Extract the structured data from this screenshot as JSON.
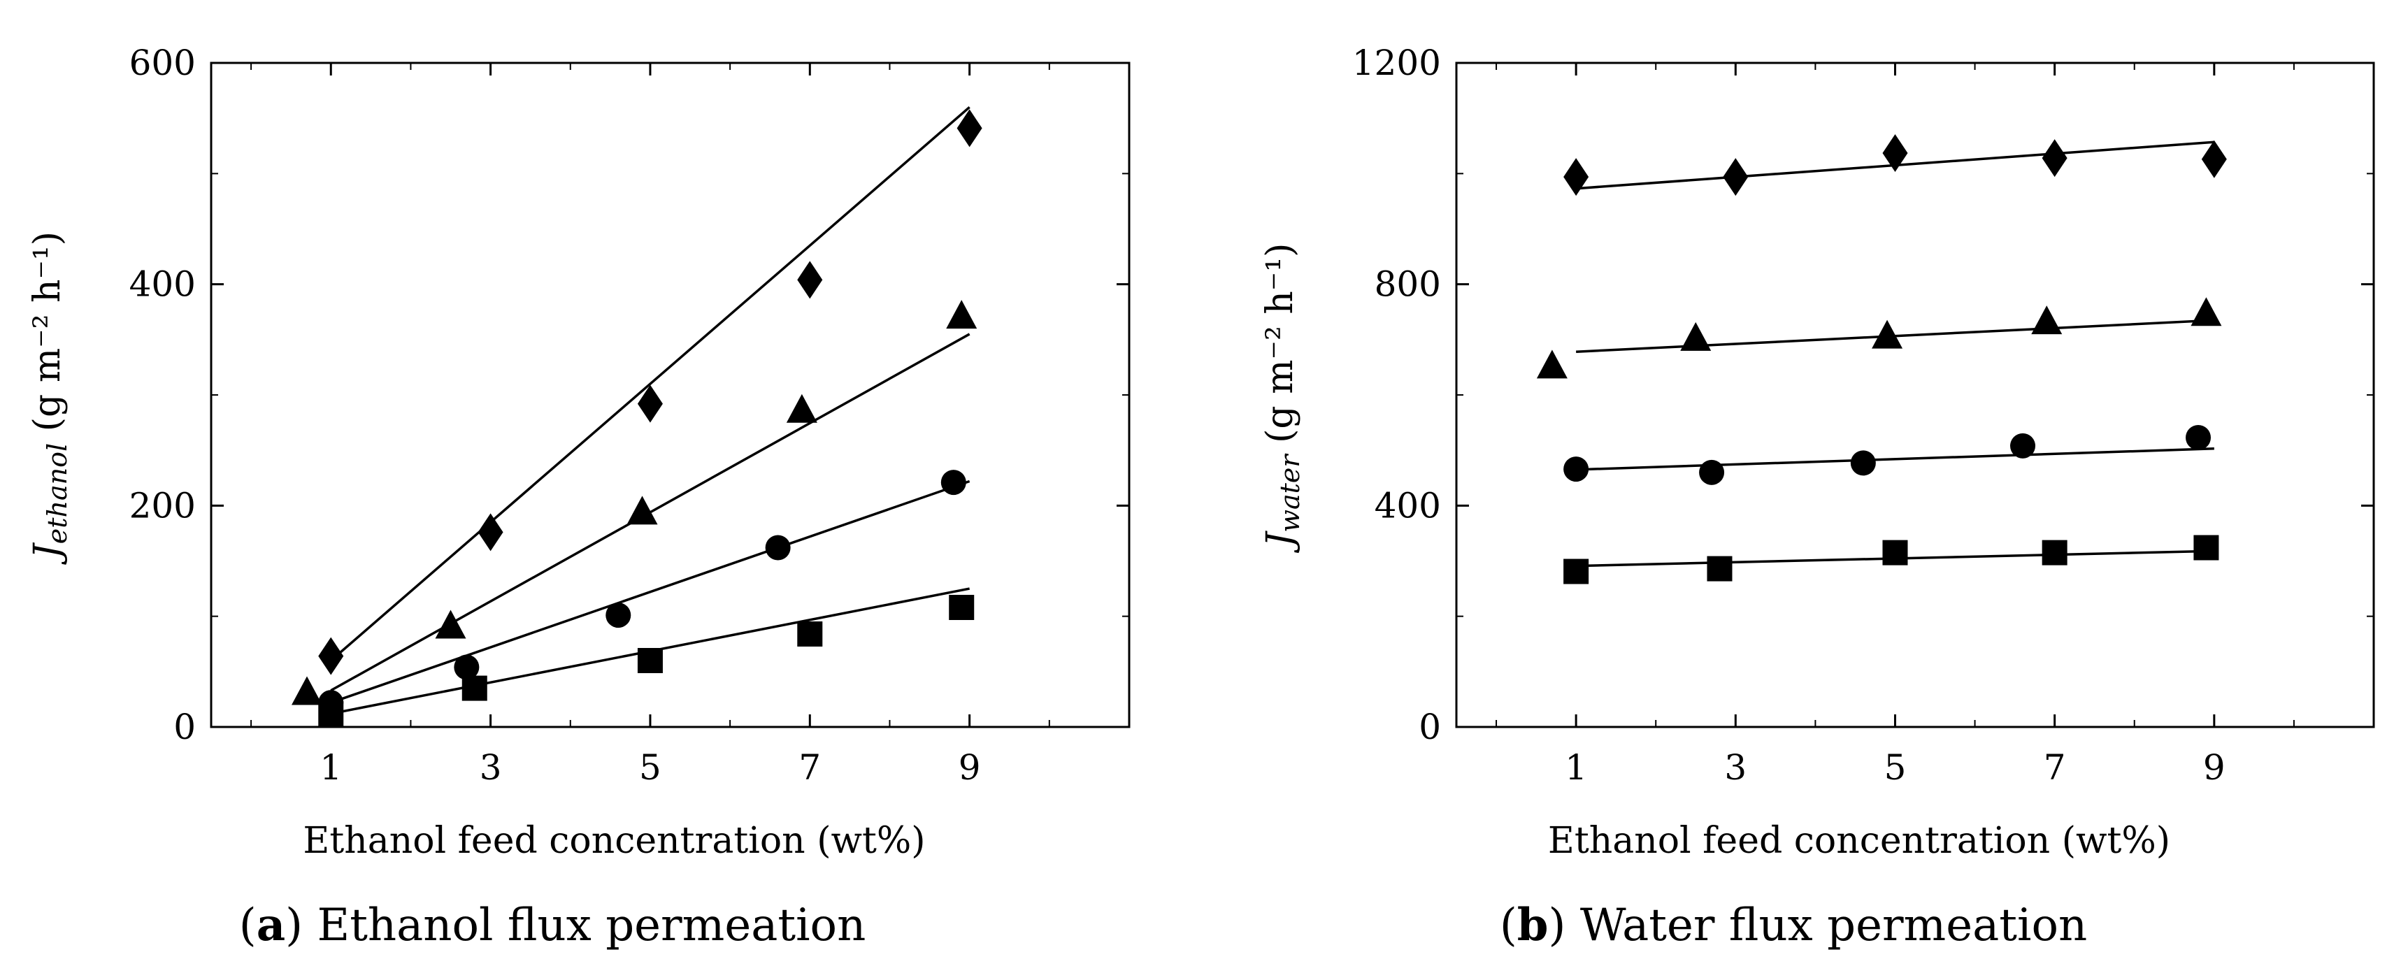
{
  "chart_data": [
    {
      "type": "scatter",
      "panel_letter": "a",
      "caption": "Ethanol flux permeation",
      "xlabel": "Ethanol feed concentration (wt%)",
      "ylabel_symbol": "J",
      "ylabel_subscript": "ethanol",
      "ylabel_units": "g m⁻² h⁻¹",
      "xlim": [
        -0.5,
        11
      ],
      "ylim": [
        0,
        600
      ],
      "xticks": [
        "1",
        "3",
        "5",
        "7",
        "9"
      ],
      "yticks": [
        "0",
        "200",
        "400",
        "600"
      ],
      "series": [
        {
          "name": "diamond",
          "marker": "diamond",
          "points": [
            [
              1,
              64
            ],
            [
              3,
              176
            ],
            [
              5,
              292
            ],
            [
              7,
              404
            ],
            [
              9,
              541
            ]
          ],
          "fit": [
            [
              1,
              60
            ],
            [
              9,
              560
            ]
          ]
        },
        {
          "name": "triangle",
          "marker": "triangle",
          "points": [
            [
              0.7,
              30
            ],
            [
              2.5,
              90
            ],
            [
              4.9,
              193
            ],
            [
              6.9,
              285
            ],
            [
              8.9,
              370
            ]
          ],
          "fit": [
            [
              1,
              33
            ],
            [
              9,
              355
            ]
          ]
        },
        {
          "name": "circle",
          "marker": "circle",
          "points": [
            [
              1,
              22
            ],
            [
              2.7,
              54
            ],
            [
              4.6,
              101
            ],
            [
              6.6,
              162
            ],
            [
              8.8,
              221
            ]
          ],
          "fit": [
            [
              1,
              22
            ],
            [
              9,
              222
            ]
          ]
        },
        {
          "name": "square",
          "marker": "square",
          "points": [
            [
              1,
              12
            ],
            [
              2.8,
              35
            ],
            [
              5,
              60
            ],
            [
              7,
              84
            ],
            [
              8.9,
              108
            ]
          ],
          "fit": [
            [
              1,
              12
            ],
            [
              9,
              125
            ]
          ]
        }
      ]
    },
    {
      "type": "scatter",
      "panel_letter": "b",
      "caption": "Water flux permeation",
      "xlabel": "Ethanol feed concentration (wt%)",
      "ylabel_symbol": "J",
      "ylabel_subscript": "water",
      "ylabel_units": "g m⁻² h⁻¹",
      "xlim": [
        -0.5,
        11
      ],
      "ylim": [
        0,
        1200
      ],
      "xticks": [
        "1",
        "3",
        "5",
        "7",
        "9"
      ],
      "yticks": [
        "0",
        "400",
        "800",
        "1200"
      ],
      "series": [
        {
          "name": "diamond",
          "marker": "diamond",
          "points": [
            [
              1,
              994
            ],
            [
              3,
              994
            ],
            [
              5,
              1037
            ],
            [
              7,
              1028
            ],
            [
              9,
              1026
            ]
          ],
          "fit": [
            [
              1,
              973
            ],
            [
              9,
              1057
            ]
          ]
        },
        {
          "name": "triangle",
          "marker": "triangle",
          "points": [
            [
              0.7,
              650
            ],
            [
              2.5,
              700
            ],
            [
              4.9,
              704
            ],
            [
              6.9,
              730
            ],
            [
              8.9,
              745
            ]
          ],
          "fit": [
            [
              1,
              678
            ],
            [
              9,
              735
            ]
          ]
        },
        {
          "name": "circle",
          "marker": "circle",
          "points": [
            [
              1,
              466
            ],
            [
              2.7,
              460
            ],
            [
              4.6,
              477
            ],
            [
              6.6,
              508
            ],
            [
              8.8,
              523
            ]
          ],
          "fit": [
            [
              1,
              465
            ],
            [
              9,
              503
            ]
          ]
        },
        {
          "name": "square",
          "marker": "square",
          "points": [
            [
              1,
              281
            ],
            [
              2.8,
              286
            ],
            [
              5,
              315
            ],
            [
              7,
              315
            ],
            [
              8.9,
              324
            ]
          ],
          "fit": [
            [
              1,
              291
            ],
            [
              9,
              318
            ]
          ]
        }
      ]
    }
  ]
}
